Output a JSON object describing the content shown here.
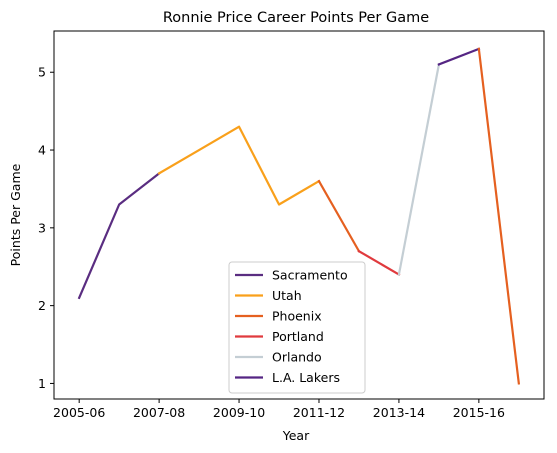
{
  "chart_data": {
    "type": "line",
    "title": "Ronnie Price Career Points Per Game",
    "xlabel": "Year",
    "ylabel": "Points Per Game",
    "x_categories": [
      "2005-06",
      "2006-07",
      "2007-08",
      "2008-09",
      "2009-10",
      "2010-11",
      "2011-12",
      "2012-13",
      "2013-14",
      "2014-15",
      "2015-16",
      "2016-17"
    ],
    "x_tick_labels": [
      "2005-06",
      "2007-08",
      "2009-10",
      "2011-12",
      "2013-14",
      "2015-16"
    ],
    "y_ticks": [
      1,
      2,
      3,
      4,
      5
    ],
    "ylim": [
      0.8,
      5.53
    ],
    "grid": false,
    "legend_placement": "lower center",
    "series": [
      {
        "name": "Sacramento",
        "color": "#5a2d81",
        "points": [
          [
            "2005-06",
            2.1
          ],
          [
            "2006-07",
            3.3
          ],
          [
            "2007-08",
            3.7
          ]
        ]
      },
      {
        "name": "Utah",
        "color": "#f9a01b",
        "points": [
          [
            "2007-08",
            3.7
          ],
          [
            "2008-09",
            4.0
          ],
          [
            "2009-10",
            4.3
          ],
          [
            "2010-11",
            3.3
          ],
          [
            "2011-12",
            3.6
          ]
        ]
      },
      {
        "name": "Phoenix",
        "color": "#e56020",
        "points": [
          [
            "2011-12",
            3.6
          ],
          [
            "2012-13",
            2.7
          ]
        ]
      },
      {
        "name": "Portland",
        "color": "#e03a3e",
        "points": [
          [
            "2012-13",
            2.7
          ],
          [
            "2013-14",
            2.4
          ]
        ]
      },
      {
        "name": "Orlando",
        "color": "#c4ced4",
        "points": [
          [
            "2013-14",
            2.4
          ],
          [
            "2014-15",
            5.1
          ]
        ]
      },
      {
        "name": "L.A. Lakers",
        "color": "#552583",
        "points": [
          [
            "2014-15",
            5.1
          ],
          [
            "2015-16",
            5.3
          ]
        ]
      },
      {
        "name": "",
        "color": "#e56020",
        "points": [
          [
            "2015-16",
            5.3
          ],
          [
            "2016-17",
            1.0
          ]
        ]
      }
    ]
  }
}
